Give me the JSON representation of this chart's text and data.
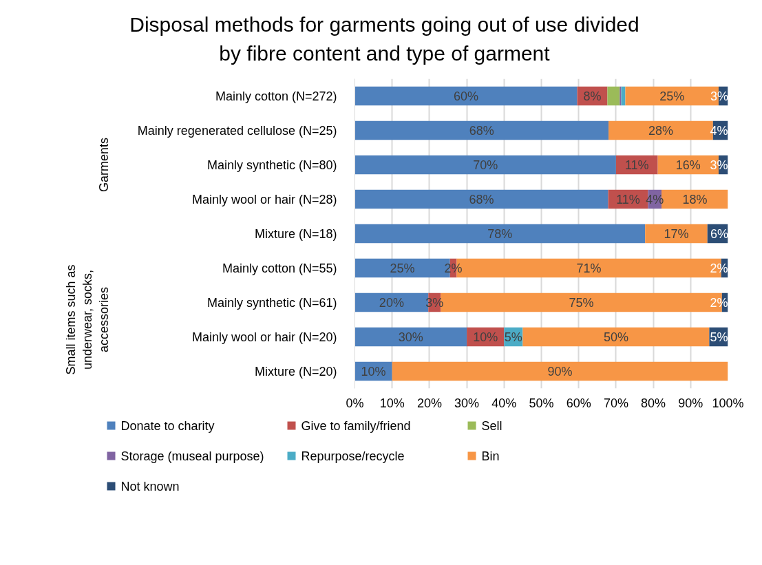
{
  "chart_data": {
    "type": "bar",
    "orientation": "horizontal",
    "stacked": true,
    "title": "Disposal methods for garments going out of use divided\nby fibre content and type of garment",
    "categories": [
      "Mainly cotton (N=272)",
      "Mainly regenerated cellulose (N=25)",
      "Mainly synthetic (N=80)",
      "Mainly wool or hair (N=28)",
      "Mixture (N=18)",
      "Mainly cotton (N=55)",
      "Mainly synthetic (N=61)",
      "Mainly wool or hair (N=20)",
      "Mixture (N=20)"
    ],
    "series": [
      {
        "name": "Donate to charity",
        "color": "#4f81bd",
        "values": [
          59.6,
          68,
          70,
          67.9,
          77.8,
          25.5,
          19.7,
          30,
          10
        ],
        "value_labels": [
          "60%",
          "68%",
          "70%",
          "68%",
          "78%",
          "25%",
          "20%",
          "30%",
          "10%"
        ]
      },
      {
        "name": "Give to family/friend",
        "color": "#c0504d",
        "values": [
          8.1,
          null,
          11.2,
          10.7,
          null,
          1.8,
          3.3,
          10,
          null
        ],
        "value_labels": [
          "8%",
          null,
          "11%",
          "11%",
          null,
          "2%",
          "3%",
          "10%",
          null
        ]
      },
      {
        "name": "Sell",
        "color": "#9bbb59",
        "values": [
          3.3,
          null,
          null,
          null,
          null,
          null,
          null,
          null,
          null
        ],
        "value_labels": [
          null,
          null,
          null,
          null,
          null,
          null,
          null,
          null,
          null
        ]
      },
      {
        "name": "Storage (museal purpose)",
        "color": "#8064a2",
        "values": [
          0.4,
          null,
          null,
          3.6,
          null,
          null,
          null,
          null,
          null
        ],
        "value_labels": [
          null,
          null,
          null,
          "4%",
          null,
          null,
          null,
          null,
          null
        ]
      },
      {
        "name": "Repurpose/recycle",
        "color": "#4bacc6",
        "values": [
          1.1,
          null,
          null,
          null,
          null,
          null,
          null,
          5,
          null
        ],
        "value_labels": [
          null,
          null,
          null,
          null,
          null,
          null,
          null,
          "5%",
          null
        ]
      },
      {
        "name": "Bin",
        "color": "#f79646",
        "values": [
          25.0,
          28,
          16.3,
          17.9,
          16.7,
          70.9,
          75.4,
          50,
          90
        ],
        "value_labels": [
          "25%",
          "28%",
          "16%",
          "18%",
          "17%",
          "71%",
          "75%",
          "50%",
          "90%"
        ]
      },
      {
        "name": "Not known",
        "color": "#2c4d75",
        "values": [
          2.6,
          4,
          2.5,
          null,
          5.6,
          1.8,
          1.6,
          5,
          null
        ],
        "value_labels": [
          "3%",
          "4%",
          "3%",
          null,
          "6%",
          "2%",
          "2%",
          "5%",
          null
        ]
      }
    ],
    "xlim": [
      0,
      100
    ],
    "xticks": [
      {
        "value": 0,
        "label": "0%"
      },
      {
        "value": 10,
        "label": "10%"
      },
      {
        "value": 20,
        "label": "20%"
      },
      {
        "value": 30,
        "label": "30%"
      },
      {
        "value": 40,
        "label": "40%"
      },
      {
        "value": 50,
        "label": "50%"
      },
      {
        "value": 60,
        "label": "60%"
      },
      {
        "value": 70,
        "label": "70%"
      },
      {
        "value": 80,
        "label": "80%"
      },
      {
        "value": 90,
        "label": "90%"
      },
      {
        "value": 100,
        "label": "100%"
      }
    ],
    "annotations": [
      "Garments",
      "Small items such as underwear, socks, accessories"
    ],
    "grid": "x",
    "legend": "bottom"
  }
}
